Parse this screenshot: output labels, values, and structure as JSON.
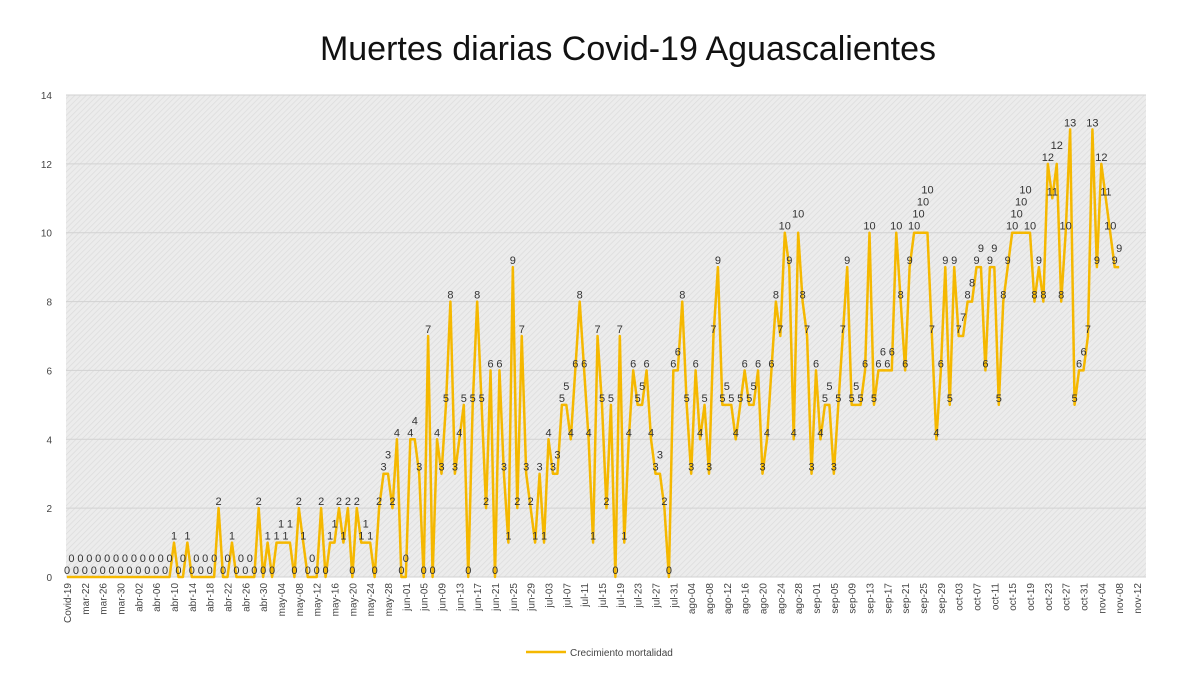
{
  "chart_data": {
    "type": "line",
    "title": "Muertes diarias Covid-19 Aguascalientes",
    "xlabel": "",
    "ylabel": "",
    "ylim": [
      0,
      14
    ],
    "yticks": [
      0,
      2,
      4,
      6,
      8,
      10,
      12,
      14
    ],
    "grid": true,
    "legend": "bottom",
    "line_color": "#f5b800",
    "x_tick_labels": [
      "Covid-19",
      "mar-22",
      "mar-26",
      "mar-30",
      "abr-02",
      "abr-06",
      "abr-10",
      "abr-14",
      "abr-18",
      "abr-22",
      "abr-26",
      "abr-30",
      "may-04",
      "may-08",
      "may-12",
      "may-16",
      "may-20",
      "may-24",
      "may-28",
      "jun-01",
      "jun-05",
      "jun-09",
      "jun-13",
      "jun-17",
      "jun-21",
      "jun-25",
      "jun-29",
      "jul-03",
      "jul-07",
      "jul-11",
      "jul-15",
      "jul-19",
      "jul-23",
      "jul-27",
      "jul-31",
      "ago-04",
      "ago-08",
      "ago-12",
      "ago-16",
      "ago-20",
      "ago-24",
      "ago-28",
      "sep-01",
      "sep-05",
      "sep-09",
      "sep-13",
      "sep-17",
      "sep-21",
      "sep-25",
      "sep-29",
      "oct-03",
      "oct-07",
      "oct-11",
      "oct-15",
      "oct-19",
      "oct-23",
      "oct-27",
      "oct-31",
      "nov-04",
      "nov-08",
      "nov-12"
    ],
    "series": [
      {
        "name": "Crecimiento mortalidad",
        "values": [
          0,
          0,
          0,
          0,
          0,
          0,
          0,
          0,
          0,
          0,
          0,
          0,
          0,
          0,
          0,
          0,
          0,
          0,
          0,
          0,
          0,
          0,
          0,
          0,
          1,
          0,
          0,
          1,
          0,
          0,
          0,
          0,
          0,
          0,
          2,
          0,
          0,
          1,
          0,
          0,
          0,
          0,
          0,
          2,
          0,
          1,
          0,
          1,
          1,
          1,
          1,
          0,
          2,
          1,
          0,
          0,
          0,
          2,
          0,
          1,
          1,
          2,
          1,
          2,
          0,
          2,
          1,
          1,
          1,
          0,
          2,
          3,
          3,
          2,
          4,
          0,
          0,
          4,
          4,
          3,
          0,
          7,
          0,
          4,
          3,
          5,
          8,
          3,
          4,
          5,
          0,
          5,
          8,
          5,
          2,
          6,
          0,
          6,
          3,
          1,
          9,
          2,
          7,
          3,
          2,
          1,
          3,
          1,
          4,
          3,
          3,
          5,
          5,
          4,
          6,
          8,
          6,
          4,
          1,
          7,
          5,
          2,
          5,
          0,
          7,
          1,
          4,
          6,
          5,
          5,
          6,
          4,
          3,
          3,
          2,
          0,
          6,
          6,
          8,
          5,
          3,
          6,
          4,
          5,
          3,
          7,
          9,
          5,
          5,
          5,
          4,
          5,
          6,
          5,
          5,
          6,
          3,
          4,
          6,
          8,
          7,
          10,
          9,
          4,
          10,
          8,
          7,
          3,
          6,
          4,
          5,
          5,
          3,
          5,
          7,
          9,
          5,
          5,
          5,
          6,
          10,
          5,
          6,
          6,
          6,
          6,
          10,
          8,
          6,
          9,
          10,
          10,
          10,
          10,
          7,
          4,
          6,
          9,
          5,
          9,
          7,
          7,
          8,
          8,
          9,
          9,
          6,
          9,
          9,
          5,
          8,
          9,
          10,
          10,
          10,
          10,
          10,
          8,
          9,
          8,
          12,
          11,
          12,
          8,
          10,
          13,
          5,
          6,
          6,
          7,
          13,
          9,
          12,
          11,
          10,
          9,
          9
        ]
      }
    ]
  }
}
